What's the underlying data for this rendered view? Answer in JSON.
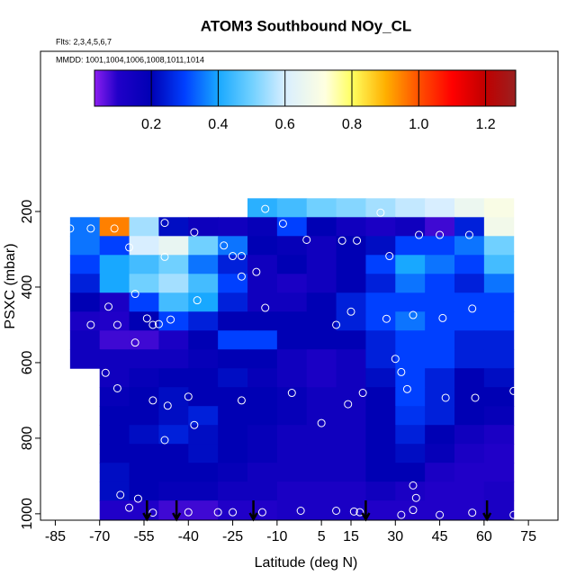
{
  "chart_data": {
    "type": "curtain",
    "title": "ATOM3 Southbound NOy_CL",
    "subtitle": "Flts: 2,3,4,5,6,7",
    "annotation": "MMDD: 1001,1004,1006,1008,1011,1014",
    "xlabel": "Latitude (deg N)",
    "ylabel": "PSXC (mbar)",
    "xlim": [
      -90,
      85
    ],
    "xticks": [
      -85,
      -70,
      -55,
      -40,
      -25,
      -10,
      5,
      15,
      30,
      45,
      60,
      75
    ],
    "ylim": [
      1017,
      -224
    ],
    "yticks": [
      200,
      400,
      600,
      800,
      1000
    ],
    "lat": [
      -75,
      -65,
      -55,
      -45,
      -35,
      -25,
      -15,
      -5,
      5,
      15,
      25,
      35,
      45,
      55,
      65
    ],
    "pressure": [
      190,
      240,
      290,
      340,
      390,
      440,
      490,
      540,
      590,
      640,
      690,
      740,
      790,
      840,
      890,
      940,
      990
    ],
    "z": [
      [
        null,
        null,
        null,
        null,
        null,
        null,
        0.42,
        0.45,
        0.5,
        0.52,
        0.55,
        0.58,
        0.6,
        0.66,
        0.7
      ],
      [
        0.35,
        0.95,
        0.55,
        0.22,
        0.16,
        0.15,
        0.18,
        0.3,
        0.2,
        0.15,
        0.12,
        0.15,
        0.08,
        0.25,
        0.68
      ],
      [
        0.35,
        0.3,
        0.6,
        0.65,
        0.5,
        0.35,
        0.2,
        0.18,
        0.15,
        0.2,
        0.22,
        0.3,
        0.3,
        0.35,
        0.5
      ],
      [
        0.3,
        0.4,
        0.45,
        0.5,
        0.35,
        0.25,
        0.15,
        0.2,
        0.15,
        0.2,
        0.3,
        0.4,
        0.35,
        0.3,
        0.45
      ],
      [
        0.25,
        0.4,
        0.5,
        0.55,
        0.45,
        0.3,
        0.15,
        0.12,
        0.15,
        0.2,
        0.25,
        0.35,
        0.3,
        0.25,
        0.35
      ],
      [
        0.2,
        0.12,
        0.3,
        0.45,
        0.4,
        0.25,
        0.15,
        0.15,
        0.2,
        0.25,
        0.3,
        0.3,
        0.3,
        0.3,
        0.3
      ],
      [
        0.12,
        0.1,
        0.2,
        0.3,
        0.25,
        0.2,
        0.2,
        0.2,
        0.2,
        0.25,
        0.3,
        0.35,
        0.3,
        0.3,
        0.3
      ],
      [
        0.15,
        0.08,
        0.08,
        0.12,
        0.2,
        0.3,
        0.3,
        0.2,
        0.2,
        0.2,
        0.25,
        0.3,
        0.3,
        0.25,
        0.25
      ],
      [
        0.15,
        0.15,
        0.15,
        0.15,
        0.18,
        0.2,
        0.2,
        0.15,
        0.12,
        0.15,
        0.25,
        0.3,
        0.3,
        0.25,
        0.25
      ],
      [
        null,
        0.15,
        0.18,
        0.2,
        0.2,
        0.22,
        0.18,
        0.15,
        0.12,
        0.15,
        0.22,
        0.3,
        0.25,
        0.2,
        0.22
      ],
      [
        null,
        0.18,
        0.2,
        0.22,
        0.2,
        0.2,
        0.2,
        0.18,
        0.15,
        0.15,
        0.2,
        0.3,
        0.25,
        0.2,
        0.2
      ],
      [
        null,
        0.2,
        0.2,
        0.22,
        0.25,
        0.2,
        0.2,
        0.18,
        0.15,
        0.15,
        0.2,
        0.28,
        0.25,
        0.2,
        0.18
      ],
      [
        null,
        0.2,
        0.22,
        0.25,
        0.22,
        0.2,
        0.18,
        0.15,
        0.15,
        0.15,
        0.2,
        0.25,
        0.2,
        0.15,
        0.12
      ],
      [
        null,
        0.2,
        0.2,
        0.2,
        0.22,
        0.2,
        0.18,
        0.15,
        0.15,
        0.15,
        0.2,
        0.22,
        0.18,
        0.12,
        0.1
      ],
      [
        null,
        0.22,
        0.2,
        0.2,
        0.2,
        0.18,
        0.15,
        0.15,
        0.15,
        0.15,
        0.2,
        0.2,
        0.12,
        0.1,
        0.1
      ],
      [
        null,
        0.22,
        0.2,
        0.18,
        0.18,
        0.15,
        0.15,
        0.12,
        0.12,
        0.12,
        0.15,
        0.12,
        0.1,
        0.1,
        0.12
      ],
      [
        null,
        0.1,
        0.1,
        0.08,
        0.08,
        0.1,
        0.1,
        0.12,
        0.12,
        0.12,
        0.1,
        0.1,
        0.1,
        0.1,
        0.12
      ]
    ],
    "colorbar_lim": [
      0.03,
      1.29
    ],
    "colorbar_ticks": [
      0.2,
      0.4,
      0.6,
      0.8,
      {
        "value": 1,
        "label": "1.0"
      },
      1.2
    ],
    "colorscale": [
      {
        "value": 0.03,
        "color": "#8c1ef0"
      },
      {
        "value": 0.1,
        "color": "#2000c8"
      },
      {
        "value": 0.2,
        "color": "#0000b4"
      },
      {
        "value": 0.3,
        "color": "#0040ff"
      },
      {
        "value": 0.4,
        "color": "#18a8ff"
      },
      {
        "value": 0.5,
        "color": "#70d0ff"
      },
      {
        "value": 0.6,
        "color": "#d8eeff"
      },
      {
        "value": 0.72,
        "color": "#ffffe0"
      },
      {
        "value": 0.8,
        "color": "#ffff60"
      },
      {
        "value": 0.9,
        "color": "#ffb000"
      },
      {
        "value": 1.0,
        "color": "#ff5000"
      },
      {
        "value": 1.1,
        "color": "#ff0000"
      },
      {
        "value": 1.2,
        "color": "#c00000"
      },
      {
        "value": 1.29,
        "color": "#9a2020"
      }
    ],
    "points": {
      "color": "#ffffff",
      "x": [
        -80,
        -73,
        -65,
        -48,
        -38,
        -28,
        -22,
        -25,
        -17,
        -14,
        -8,
        0,
        12,
        17,
        25,
        28,
        38,
        45,
        55,
        -60,
        -48,
        -58,
        -73,
        -64,
        -67,
        -52,
        -50,
        -46,
        -58,
        -54,
        -37,
        -22,
        -14,
        10,
        15,
        27,
        36,
        46,
        56,
        -68,
        -64,
        -52,
        -47,
        -40,
        -22,
        -5,
        14,
        19,
        30,
        32,
        34,
        47,
        57,
        70,
        -48,
        -38,
        5,
        -63,
        -57,
        -60,
        -52,
        -40,
        -30,
        -25,
        -15,
        -2,
        10,
        16,
        18,
        32,
        36,
        37,
        36,
        45,
        56,
        70
      ],
      "y": [
        245,
        245,
        245,
        230,
        255,
        290,
        318,
        318,
        360,
        193,
        232,
        275,
        277,
        277,
        203,
        318,
        262,
        262,
        262,
        295,
        320,
        418,
        500,
        500,
        452,
        500,
        498,
        486,
        547,
        483,
        435,
        372,
        455,
        500,
        465,
        484,
        474,
        482,
        457,
        627,
        668,
        700,
        714,
        690,
        700,
        680,
        710,
        680,
        590,
        625,
        670,
        693,
        693,
        675,
        805,
        765,
        760,
        950,
        960,
        984,
        997,
        996,
        996,
        996,
        996,
        992,
        992,
        994,
        996,
        1003,
        990,
        958,
        925,
        1003,
        997,
        1003
      ]
    },
    "flight_markers": [
      -54,
      -44,
      -18,
      20,
      61
    ],
    "marker_color": "#000000"
  }
}
